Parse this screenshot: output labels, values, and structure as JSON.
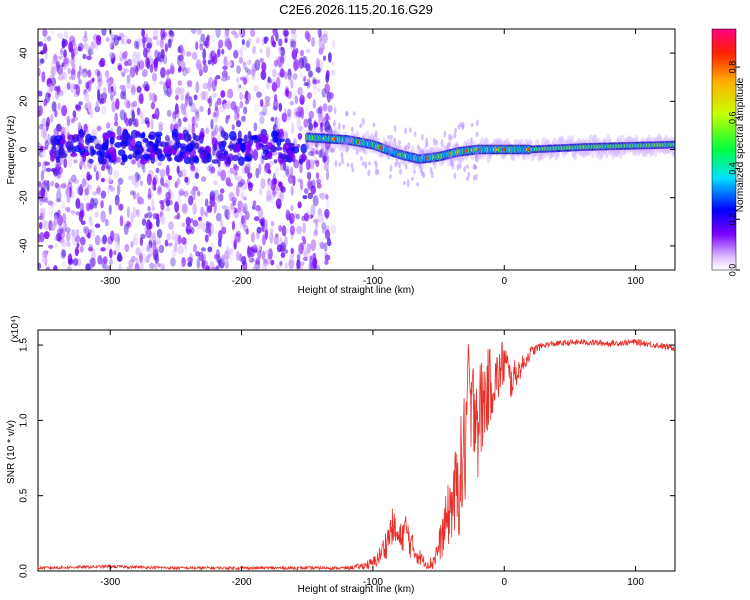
{
  "figure": {
    "title": "C2E6.2026.115.20.16.G29"
  },
  "chart_data": [
    {
      "type": "heatmap",
      "title": "C2E6.2026.115.20.16.G29",
      "xlabel": "Height of straight line (km)",
      "ylabel": "Frequency (Hz)",
      "xlim": [
        -355,
        130
      ],
      "ylim": [
        -50,
        50
      ],
      "xticks": [
        -300,
        -200,
        -100,
        0,
        100
      ],
      "yticks": [
        -40,
        -20,
        0,
        20,
        40
      ],
      "colorbar": {
        "label": "Normalized spectral amplitude",
        "range": [
          0,
          0.95
        ],
        "ticks": [
          0.0,
          0.2,
          0.4,
          0.6,
          0.8
        ]
      },
      "ridge": {
        "description_points": [
          [
            -150,
            5
          ],
          [
            -120,
            4
          ],
          [
            -100,
            2
          ],
          [
            -80,
            -2
          ],
          [
            -65,
            -4
          ],
          [
            -50,
            -3
          ],
          [
            -35,
            -1
          ],
          [
            -20,
            0
          ],
          [
            0,
            0
          ],
          [
            20,
            0
          ],
          [
            60,
            1
          ],
          [
            130,
            2
          ]
        ]
      }
    },
    {
      "type": "line",
      "xlabel": "Height of straight line (km)",
      "ylabel": "SNR (10 * v/v)",
      "yscale_label": "(x10⁴)",
      "xlim": [
        -355,
        130
      ],
      "ylim": [
        0.0,
        1.6
      ],
      "xticks": [
        -300,
        -200,
        -100,
        0,
        100
      ],
      "yticks": [
        0.0,
        0.5,
        1.0,
        1.5
      ],
      "series": [
        {
          "name": "SNR",
          "color": "#e8302a",
          "x": [
            -355,
            -300,
            -250,
            -200,
            -150,
            -120,
            -110,
            -100,
            -95,
            -90,
            -85,
            -80,
            -75,
            -70,
            -65,
            -60,
            -55,
            -50,
            -45,
            -40,
            -35,
            -30,
            -27,
            -25,
            -22,
            -20,
            -15,
            -10,
            -5,
            0,
            5,
            8,
            10,
            15,
            20,
            25,
            30,
            40,
            60,
            80,
            100,
            130
          ],
          "values": [
            0.02,
            0.03,
            0.02,
            0.02,
            0.02,
            0.02,
            0.03,
            0.05,
            0.1,
            0.18,
            0.3,
            0.2,
            0.28,
            0.15,
            0.1,
            0.05,
            0.05,
            0.15,
            0.3,
            0.45,
            0.55,
            0.8,
            1.4,
            0.9,
            1.2,
            1.0,
            1.15,
            1.25,
            1.28,
            1.4,
            1.25,
            1.3,
            1.32,
            1.38,
            1.45,
            1.48,
            1.5,
            1.51,
            1.52,
            1.51,
            1.52,
            1.48
          ],
          "noise_amplitude": [
            0.01,
            0.01,
            0.01,
            0.01,
            0.01,
            0.01,
            0.02,
            0.04,
            0.06,
            0.1,
            0.12,
            0.1,
            0.12,
            0.1,
            0.06,
            0.03,
            0.05,
            0.1,
            0.18,
            0.25,
            0.35,
            0.45,
            0.15,
            0.5,
            0.35,
            0.4,
            0.3,
            0.25,
            0.18,
            0.18,
            0.12,
            0.1,
            0.08,
            0.06,
            0.04,
            0.03,
            0.02,
            0.02,
            0.02,
            0.02,
            0.02,
            0.02
          ]
        }
      ]
    }
  ]
}
